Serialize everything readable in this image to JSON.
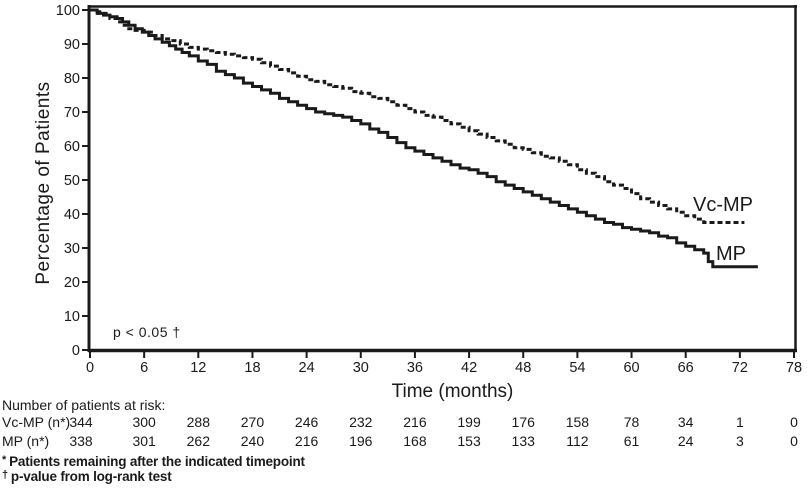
{
  "figure": {
    "y_axis_label": "Percentage of Patients",
    "x_axis_label": "Time (months)",
    "p_value_annotation": "p < 0.05 †",
    "legend": {
      "vcmp_label": "Vc-MP",
      "mp_label": "MP"
    }
  },
  "risk_table": {
    "header": "Number of patients at risk:",
    "rows": [
      {
        "label": "Vc-MP (n*)",
        "values": [
          344,
          300,
          288,
          270,
          246,
          232,
          216,
          199,
          176,
          158,
          78,
          34,
          1,
          0
        ]
      },
      {
        "label": "MP (n*)",
        "values": [
          338,
          301,
          262,
          240,
          216,
          196,
          168,
          153,
          133,
          112,
          61,
          24,
          3,
          0
        ]
      }
    ]
  },
  "footnotes": [
    {
      "marker": "*",
      "text": "Patients remaining after the indicated timepoint"
    },
    {
      "marker": "†",
      "text": "p-value from log-rank test"
    }
  ],
  "chart_data": {
    "type": "line",
    "subtype": "kaplan-meier-step",
    "title": "",
    "xlabel": "Time (months)",
    "ylabel": "Percentage of Patients",
    "xlim": [
      0,
      78
    ],
    "ylim": [
      0,
      100
    ],
    "x_ticks": [
      0,
      6,
      12,
      18,
      24,
      30,
      36,
      42,
      48,
      54,
      60,
      66,
      72,
      78
    ],
    "y_ticks": [
      0,
      10,
      20,
      30,
      40,
      50,
      60,
      70,
      80,
      90,
      100
    ],
    "grid": false,
    "legend_position": "right-of-curve-ends",
    "annotation": "p < 0.05 †",
    "line_color": "#1a1a1a",
    "series": [
      {
        "name": "Vc-MP",
        "style": "dashed",
        "points": [
          [
            0,
            100
          ],
          [
            0.8,
            99.5
          ],
          [
            1.5,
            99
          ],
          [
            2.2,
            97.5
          ],
          [
            3,
            96.5
          ],
          [
            3.6,
            95.5
          ],
          [
            4.3,
            94.5
          ],
          [
            5,
            94
          ],
          [
            6,
            93.5
          ],
          [
            7,
            92.5
          ],
          [
            8,
            91.5
          ],
          [
            9,
            91
          ],
          [
            10,
            90
          ],
          [
            11,
            89
          ],
          [
            12,
            88.5
          ],
          [
            13,
            88
          ],
          [
            14,
            87.5
          ],
          [
            15,
            87
          ],
          [
            16,
            86.5
          ],
          [
            17,
            86
          ],
          [
            18,
            85.5
          ],
          [
            19,
            84.5
          ],
          [
            20,
            83.5
          ],
          [
            21,
            82.5
          ],
          [
            22,
            81.5
          ],
          [
            23,
            80.5
          ],
          [
            24,
            79.5
          ],
          [
            25,
            79
          ],
          [
            26,
            78
          ],
          [
            27,
            77.5
          ],
          [
            28,
            77
          ],
          [
            29,
            76
          ],
          [
            30,
            75.5
          ],
          [
            31,
            74.5
          ],
          [
            32,
            74
          ],
          [
            33,
            73
          ],
          [
            34,
            72
          ],
          [
            35,
            71
          ],
          [
            36,
            70
          ],
          [
            37,
            69
          ],
          [
            38,
            68.5
          ],
          [
            39,
            67.5
          ],
          [
            40,
            66.5
          ],
          [
            41,
            65.5
          ],
          [
            42,
            64.5
          ],
          [
            43,
            63.5
          ],
          [
            44,
            62.5
          ],
          [
            45,
            61.5
          ],
          [
            46,
            60.5
          ],
          [
            47,
            59.5
          ],
          [
            48,
            59
          ],
          [
            49,
            58
          ],
          [
            50,
            57
          ],
          [
            51,
            56.5
          ],
          [
            52,
            55.5
          ],
          [
            53,
            54.5
          ],
          [
            54,
            53
          ],
          [
            55,
            52
          ],
          [
            56,
            51
          ],
          [
            57,
            49.5
          ],
          [
            58,
            48.5
          ],
          [
            59,
            47.5
          ],
          [
            60,
            46
          ],
          [
            61,
            44.5
          ],
          [
            62,
            43.5
          ],
          [
            63,
            42.5
          ],
          [
            64,
            41.5
          ],
          [
            65,
            40.5
          ],
          [
            66,
            39.5
          ],
          [
            67,
            38.5
          ],
          [
            68,
            37.5
          ],
          [
            72.5,
            37.5
          ]
        ]
      },
      {
        "name": "MP",
        "style": "solid",
        "points": [
          [
            0,
            100
          ],
          [
            0.8,
            99
          ],
          [
            1.5,
            98.5
          ],
          [
            2.2,
            98
          ],
          [
            3,
            97.5
          ],
          [
            3.6,
            96.5
          ],
          [
            4.3,
            95.5
          ],
          [
            5,
            94.5
          ],
          [
            5.8,
            93.5
          ],
          [
            6.5,
            92.5
          ],
          [
            7.2,
            91.5
          ],
          [
            8,
            90.5
          ],
          [
            8.8,
            89.5
          ],
          [
            9.5,
            88.5
          ],
          [
            10.2,
            87.5
          ],
          [
            11,
            86.5
          ],
          [
            12,
            85
          ],
          [
            13,
            84
          ],
          [
            14,
            82
          ],
          [
            15,
            81
          ],
          [
            16,
            80
          ],
          [
            17,
            78.5
          ],
          [
            18,
            77.5
          ],
          [
            19,
            76.5
          ],
          [
            20,
            75.5
          ],
          [
            21,
            74
          ],
          [
            22,
            73
          ],
          [
            23,
            72
          ],
          [
            24,
            71
          ],
          [
            25,
            70
          ],
          [
            26,
            69.5
          ],
          [
            27,
            69
          ],
          [
            28,
            68.5
          ],
          [
            29,
            67.5
          ],
          [
            30,
            66.5
          ],
          [
            31,
            65
          ],
          [
            32,
            64
          ],
          [
            33,
            62.5
          ],
          [
            34,
            61
          ],
          [
            35,
            59.5
          ],
          [
            36,
            58.5
          ],
          [
            37,
            57.5
          ],
          [
            38,
            56.5
          ],
          [
            39,
            55.5
          ],
          [
            40,
            54.5
          ],
          [
            41,
            53.5
          ],
          [
            42,
            53
          ],
          [
            43,
            52
          ],
          [
            44,
            51
          ],
          [
            45,
            49.5
          ],
          [
            46,
            48.5
          ],
          [
            47,
            47.5
          ],
          [
            48,
            46.5
          ],
          [
            49,
            45.5
          ],
          [
            50,
            44.5
          ],
          [
            51,
            43.5
          ],
          [
            52,
            42.5
          ],
          [
            53,
            41.5
          ],
          [
            54,
            40.5
          ],
          [
            55,
            39.5
          ],
          [
            56,
            38.5
          ],
          [
            57,
            37.5
          ],
          [
            58,
            37
          ],
          [
            59,
            36
          ],
          [
            60,
            35.5
          ],
          [
            61,
            35
          ],
          [
            62,
            34.5
          ],
          [
            63,
            33.5
          ],
          [
            64,
            33
          ],
          [
            65,
            31.5
          ],
          [
            66,
            30.5
          ],
          [
            67,
            29.5
          ],
          [
            68,
            28.5
          ],
          [
            68.5,
            26
          ],
          [
            69,
            24.5
          ],
          [
            74,
            24.5
          ]
        ]
      }
    ]
  }
}
